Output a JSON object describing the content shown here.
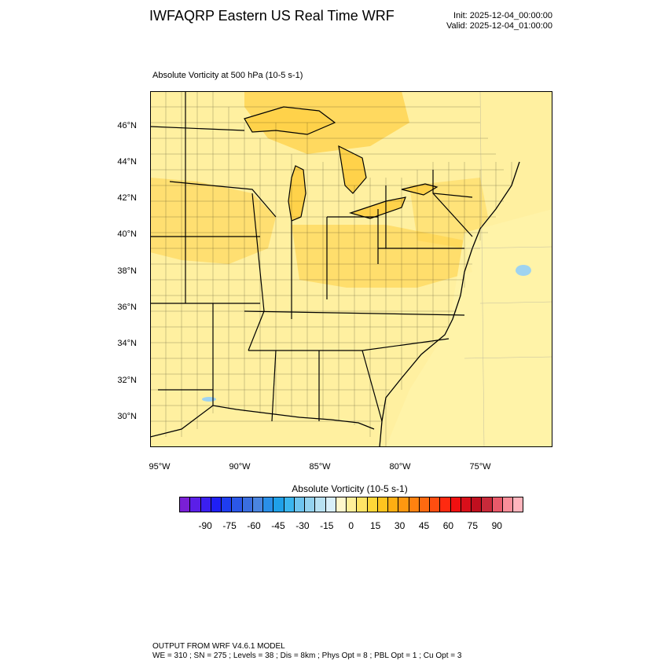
{
  "header": {
    "title": "IWFAQRP Eastern US Real Time WRF",
    "init": "Init: 2025-12-04_00:00:00",
    "valid": "Valid: 2025-12-04_01:00:00"
  },
  "field": {
    "label": "Absolute Vorticity at 500 hPa   (10-5 s-1)"
  },
  "map": {
    "lat_labels": [
      "46°N",
      "44°N",
      "42°N",
      "40°N",
      "38°N",
      "36°N",
      "34°N",
      "32°N",
      "30°N"
    ],
    "lon_labels": [
      "95°W",
      "90°W",
      "85°W",
      "80°W",
      "75°W"
    ],
    "colors": {
      "land_base": "#fff0a0",
      "ocean_base": "#fff3a8",
      "warm_band": "#ffd24a",
      "lake": "#9fd3f0",
      "boundary": "#000000"
    }
  },
  "colorbar": {
    "title": "Absolute Vorticity  (10-5 s-1)",
    "tick_labels": [
      "-90",
      "-75",
      "-60",
      "-45",
      "-30",
      "-15",
      "0",
      "15",
      "30",
      "45",
      "60",
      "75",
      "90"
    ],
    "colors": [
      "#7a1fd6",
      "#5b1fe8",
      "#3b1ff0",
      "#1f1ff5",
      "#1f3df0",
      "#2b57e8",
      "#3a6ee0",
      "#4a85e0",
      "#2a8fe8",
      "#1fa0e8",
      "#3ab5ee",
      "#6ec4ee",
      "#94d2ee",
      "#b8e1f2",
      "#d9effa",
      "#fff7cc",
      "#ffef9a",
      "#ffe466",
      "#ffd638",
      "#ffc41f",
      "#ffae12",
      "#ff9810",
      "#ff8210",
      "#ff6a10",
      "#ff4e10",
      "#ff2a10",
      "#f01010",
      "#d80f1a",
      "#c00f1f",
      "#c82a3a",
      "#e85a6a",
      "#f88e99",
      "#ffb5bd"
    ]
  },
  "footer": {
    "model": "OUTPUT FROM WRF V4.6.1 MODEL",
    "params": "WE = 310 ; SN = 275 ; Levels = 38 ; Dis = 8km ; Phys Opt = 8 ; PBL Opt = 1 ; Cu Opt = 3"
  }
}
